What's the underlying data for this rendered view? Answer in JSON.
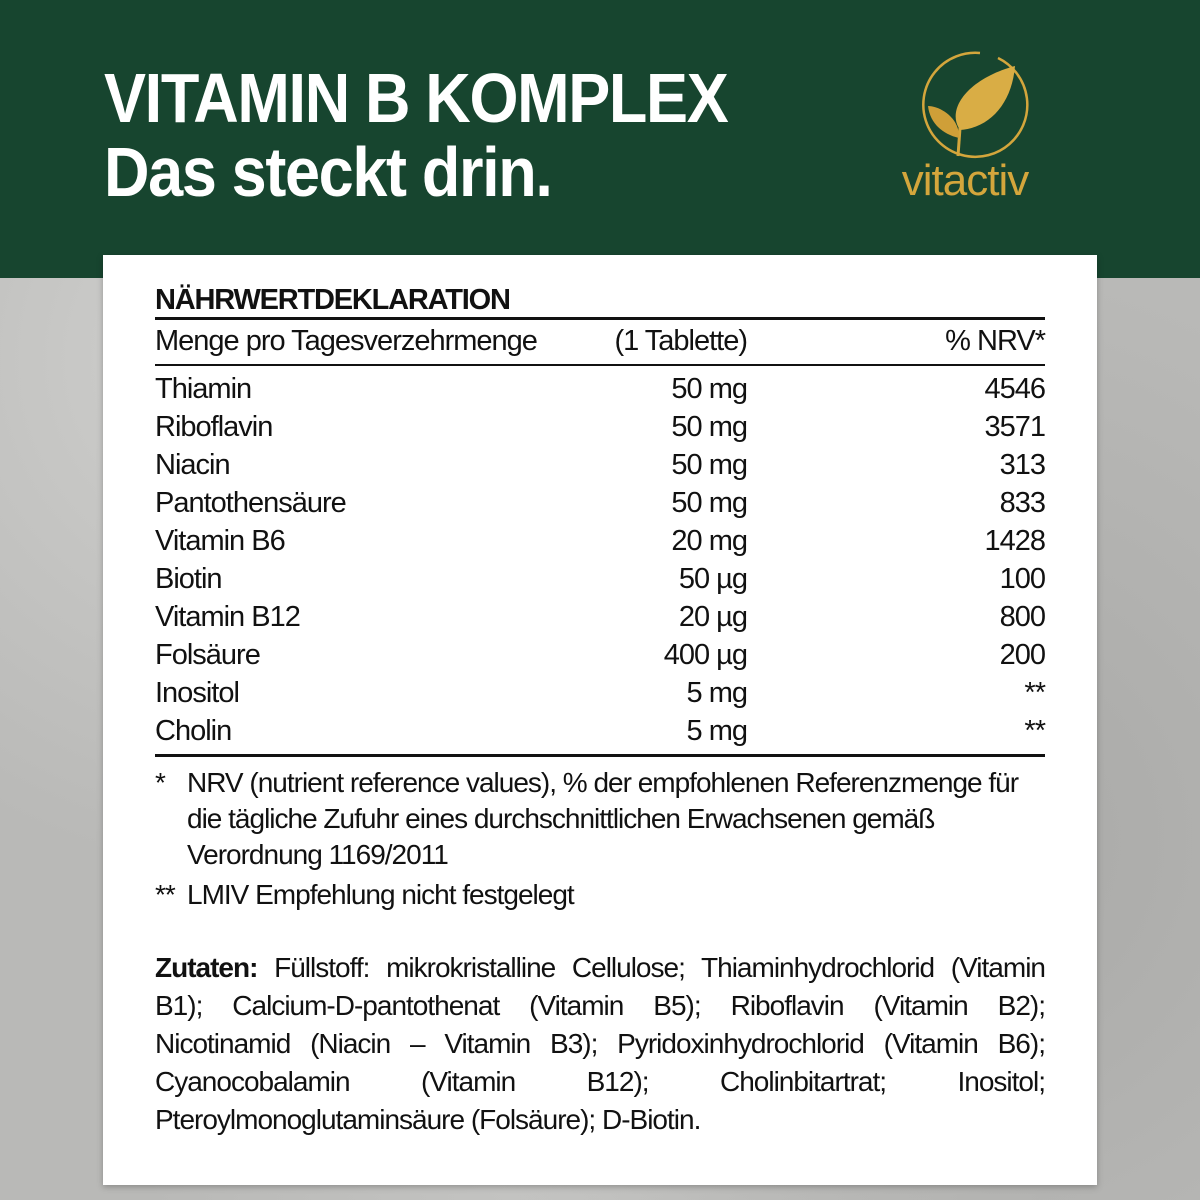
{
  "header": {
    "title_line1": "VITAMIN B KOMPLEX",
    "title_line2": "Das steckt drin.",
    "logo_text": "vitactiv",
    "colors": {
      "background": "#17452f",
      "logo": "#d4a63c"
    }
  },
  "table": {
    "title": "NÄHRWERTDEKLARATION",
    "columns": [
      "Menge pro Tagesverzehrmenge",
      "(1 Tablette)",
      "% NRV*"
    ],
    "rows": [
      [
        "Thiamin",
        "50 mg",
        "4546"
      ],
      [
        "Riboflavin",
        "50 mg",
        "3571"
      ],
      [
        "Niacin",
        "50 mg",
        "313"
      ],
      [
        "Pantothensäure",
        "50 mg",
        "833"
      ],
      [
        "Vitamin B6",
        "20 mg",
        "1428"
      ],
      [
        "Biotin",
        "50 µg",
        "100"
      ],
      [
        "Vitamin B12",
        "20 µg",
        "800"
      ],
      [
        "Folsäure",
        "400 µg",
        "200"
      ],
      [
        "Inositol",
        "5 mg",
        "**"
      ],
      [
        "Cholin",
        "5 mg",
        "**"
      ]
    ]
  },
  "notes": [
    {
      "mark": "*",
      "text": "NRV (nutrient reference values), % der empfohlenen Referenzmenge für die tägliche Zufuhr eines durchschnittlichen Erwachsenen gemäß Verordnung 1169/2011"
    },
    {
      "mark": "**",
      "text": "LMIV Empfehlung nicht festgelegt"
    }
  ],
  "ingredients": {
    "label": "Zutaten:",
    "text": " Füllstoff: mikrokristalline Cellulose; Thiaminhydrochlorid (Vitamin B1); Calcium-D-pantothenat (Vitamin B5); Riboflavin (Vitamin B2); Nicotinamid (Niacin – Vitamin B3); Pyridoxinhydrochlorid (Vitamin B6); Cyanocobalamin (Vitamin B12); Cholinbitartrat; Inositol; Pteroylmonoglutaminsäure (Folsäure); D-Biotin."
  }
}
